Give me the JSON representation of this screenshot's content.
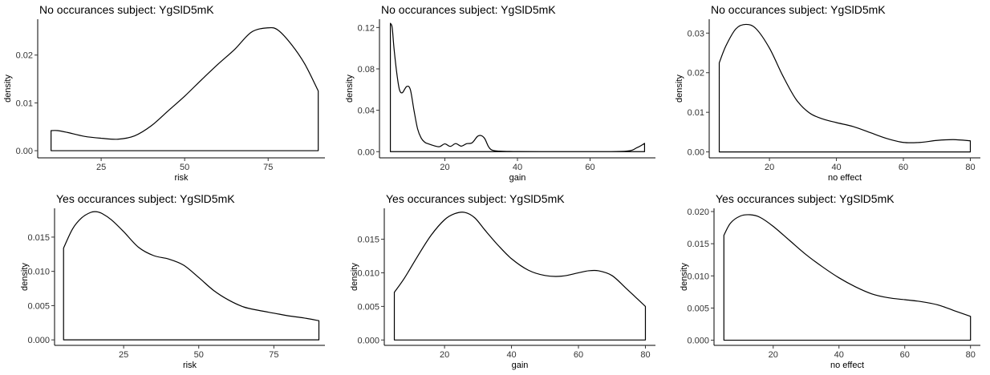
{
  "chart_data": [
    {
      "type": "area",
      "title": "No occurances subject:  YgSlD5mK",
      "xlabel": "risk",
      "ylabel": "density",
      "xlim": [
        6,
        92
      ],
      "ylim": [
        -0.0015,
        0.0275
      ],
      "xticks": [
        25,
        50,
        75
      ],
      "yticks": [
        0.0,
        0.01,
        0.02
      ],
      "ytick_labels": [
        "0.00",
        "0.01",
        "0.02"
      ],
      "x": [
        10,
        12,
        15,
        20,
        25,
        30,
        35,
        40,
        45,
        50,
        55,
        60,
        65,
        70,
        75,
        78,
        82,
        86,
        90
      ],
      "y": [
        0.0042,
        0.0042,
        0.0038,
        0.003,
        0.0026,
        0.0024,
        0.0031,
        0.0052,
        0.0083,
        0.0114,
        0.0148,
        0.0181,
        0.0212,
        0.0248,
        0.0257,
        0.0252,
        0.0222,
        0.0181,
        0.0125
      ],
      "grid": false,
      "legend": "none"
    },
    {
      "type": "area",
      "title": "No occurances subject:  YgSlD5mK",
      "xlabel": "gain",
      "ylabel": "density",
      "xlim": [
        2,
        78
      ],
      "ylim": [
        -0.006,
        0.128
      ],
      "xticks": [
        20,
        40,
        60
      ],
      "yticks": [
        0.0,
        0.04,
        0.08,
        0.12
      ],
      "ytick_labels": [
        "0.00",
        "0.04",
        "0.08",
        "0.12"
      ],
      "x": [
        5,
        5.5,
        6,
        6.8,
        7.5,
        8.3,
        9.5,
        10.5,
        11.5,
        12.5,
        13.5,
        14.5,
        15.5,
        17,
        18.5,
        20,
        21.5,
        23,
        24.5,
        26,
        27.5,
        29,
        30,
        31,
        32,
        33,
        35,
        40,
        50,
        60,
        70,
        73,
        75
      ],
      "y": [
        0.124,
        0.12,
        0.1,
        0.075,
        0.06,
        0.057,
        0.063,
        0.06,
        0.04,
        0.022,
        0.013,
        0.009,
        0.0075,
        0.0058,
        0.0048,
        0.0075,
        0.0051,
        0.0078,
        0.0053,
        0.0077,
        0.0085,
        0.0148,
        0.0155,
        0.0125,
        0.005,
        0.0015,
        0.0005,
        0.0001,
        0.0,
        0.0,
        0.0005,
        0.004,
        0.008
      ],
      "grid": false,
      "legend": "none"
    },
    {
      "type": "area",
      "title": "No occurances subject:  YgSlD5mK",
      "xlabel": "no effect",
      "ylabel": "density",
      "xlim": [
        2,
        83
      ],
      "ylim": [
        -0.0015,
        0.0335
      ],
      "xticks": [
        20,
        40,
        60,
        80
      ],
      "yticks": [
        0.0,
        0.01,
        0.02,
        0.03
      ],
      "ytick_labels": [
        "0.00",
        "0.01",
        "0.02",
        "0.03"
      ],
      "x": [
        5,
        7,
        10,
        13,
        16,
        20,
        24,
        28,
        32,
        36,
        40,
        45,
        50,
        55,
        60,
        65,
        70,
        75,
        80
      ],
      "y": [
        0.0225,
        0.0268,
        0.0311,
        0.0322,
        0.0311,
        0.0262,
        0.0192,
        0.0132,
        0.0098,
        0.0083,
        0.0074,
        0.0064,
        0.0049,
        0.0034,
        0.0024,
        0.0024,
        0.0029,
        0.0031,
        0.0028
      ],
      "grid": false,
      "legend": "none"
    },
    {
      "type": "area",
      "title": "Yes occurances subject:  YgSlD5mK",
      "xlabel": "risk",
      "ylabel": "density",
      "xlim": [
        2,
        92
      ],
      "ylim": [
        -0.0008,
        0.0192
      ],
      "xticks": [
        25,
        50,
        75
      ],
      "yticks": [
        0.0,
        0.005,
        0.01,
        0.015
      ],
      "ytick_labels": [
        "0.000",
        "0.005",
        "0.010",
        "0.015"
      ],
      "x": [
        5,
        8,
        11,
        14,
        16,
        18,
        21,
        25,
        30,
        35,
        40,
        45,
        50,
        55,
        60,
        65,
        70,
        75,
        80,
        85,
        90
      ],
      "y": [
        0.0134,
        0.0162,
        0.0178,
        0.0186,
        0.0187,
        0.0184,
        0.0175,
        0.0158,
        0.0135,
        0.0123,
        0.0118,
        0.0109,
        0.0091,
        0.0072,
        0.0058,
        0.0048,
        0.0043,
        0.0039,
        0.0035,
        0.0032,
        0.0028
      ],
      "grid": false,
      "legend": "none"
    },
    {
      "type": "area",
      "title": "Yes occurances subject:  YgSlD5mK",
      "xlabel": "gain",
      "ylabel": "density",
      "xlim": [
        2,
        83
      ],
      "ylim": [
        -0.0008,
        0.0196
      ],
      "xticks": [
        20,
        40,
        60,
        80
      ],
      "yticks": [
        0.0,
        0.005,
        0.01,
        0.015
      ],
      "ytick_labels": [
        "0.000",
        "0.005",
        "0.010",
        "0.015"
      ],
      "x": [
        5,
        8,
        12,
        16,
        20,
        23,
        26,
        29,
        32,
        36,
        40,
        45,
        50,
        55,
        60,
        63,
        66,
        70,
        74,
        77,
        80
      ],
      "y": [
        0.0071,
        0.0092,
        0.0125,
        0.0156,
        0.0179,
        0.0188,
        0.019,
        0.0182,
        0.0164,
        0.0141,
        0.0121,
        0.0104,
        0.0096,
        0.0095,
        0.01,
        0.0103,
        0.0103,
        0.0096,
        0.0078,
        0.0064,
        0.005
      ],
      "grid": false,
      "legend": "none"
    },
    {
      "type": "area",
      "title": "Yes occurances subject:  YgSlD5mK",
      "xlabel": "no effect",
      "ylabel": "density",
      "xlim": [
        2,
        83
      ],
      "ylim": [
        -0.0008,
        0.0205
      ],
      "xticks": [
        20,
        40,
        60,
        80
      ],
      "yticks": [
        0.0,
        0.005,
        0.01,
        0.015,
        0.02
      ],
      "ytick_labels": [
        "0.000",
        "0.005",
        "0.010",
        "0.015",
        "0.020"
      ],
      "x": [
        5,
        7,
        10,
        13,
        16,
        20,
        25,
        30,
        35,
        40,
        45,
        50,
        55,
        60,
        65,
        70,
        75,
        80
      ],
      "y": [
        0.0163,
        0.0182,
        0.0193,
        0.0195,
        0.0191,
        0.0177,
        0.0155,
        0.0133,
        0.0114,
        0.0097,
        0.0083,
        0.0072,
        0.0066,
        0.0063,
        0.006,
        0.0055,
        0.0046,
        0.0037
      ],
      "grid": false,
      "legend": "none"
    }
  ]
}
